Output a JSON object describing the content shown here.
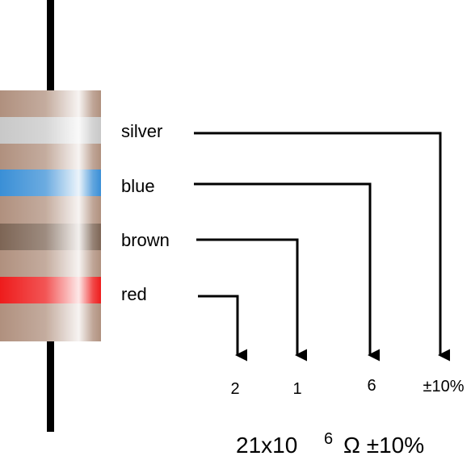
{
  "bands": [
    {
      "name": "silver",
      "color": "#c8c8c8",
      "value": "±10%"
    },
    {
      "name": "blue",
      "color": "#3a8fd6",
      "value": "6"
    },
    {
      "name": "brown",
      "color": "#7d6555",
      "value": "1"
    },
    {
      "name": "red",
      "color": "#ee1c1c",
      "value": "2"
    }
  ],
  "body_color": "#b0907e",
  "lead_color": "#000000",
  "result": {
    "base": "21x10",
    "exponent": "6",
    "unit": "Ω ±10%"
  }
}
